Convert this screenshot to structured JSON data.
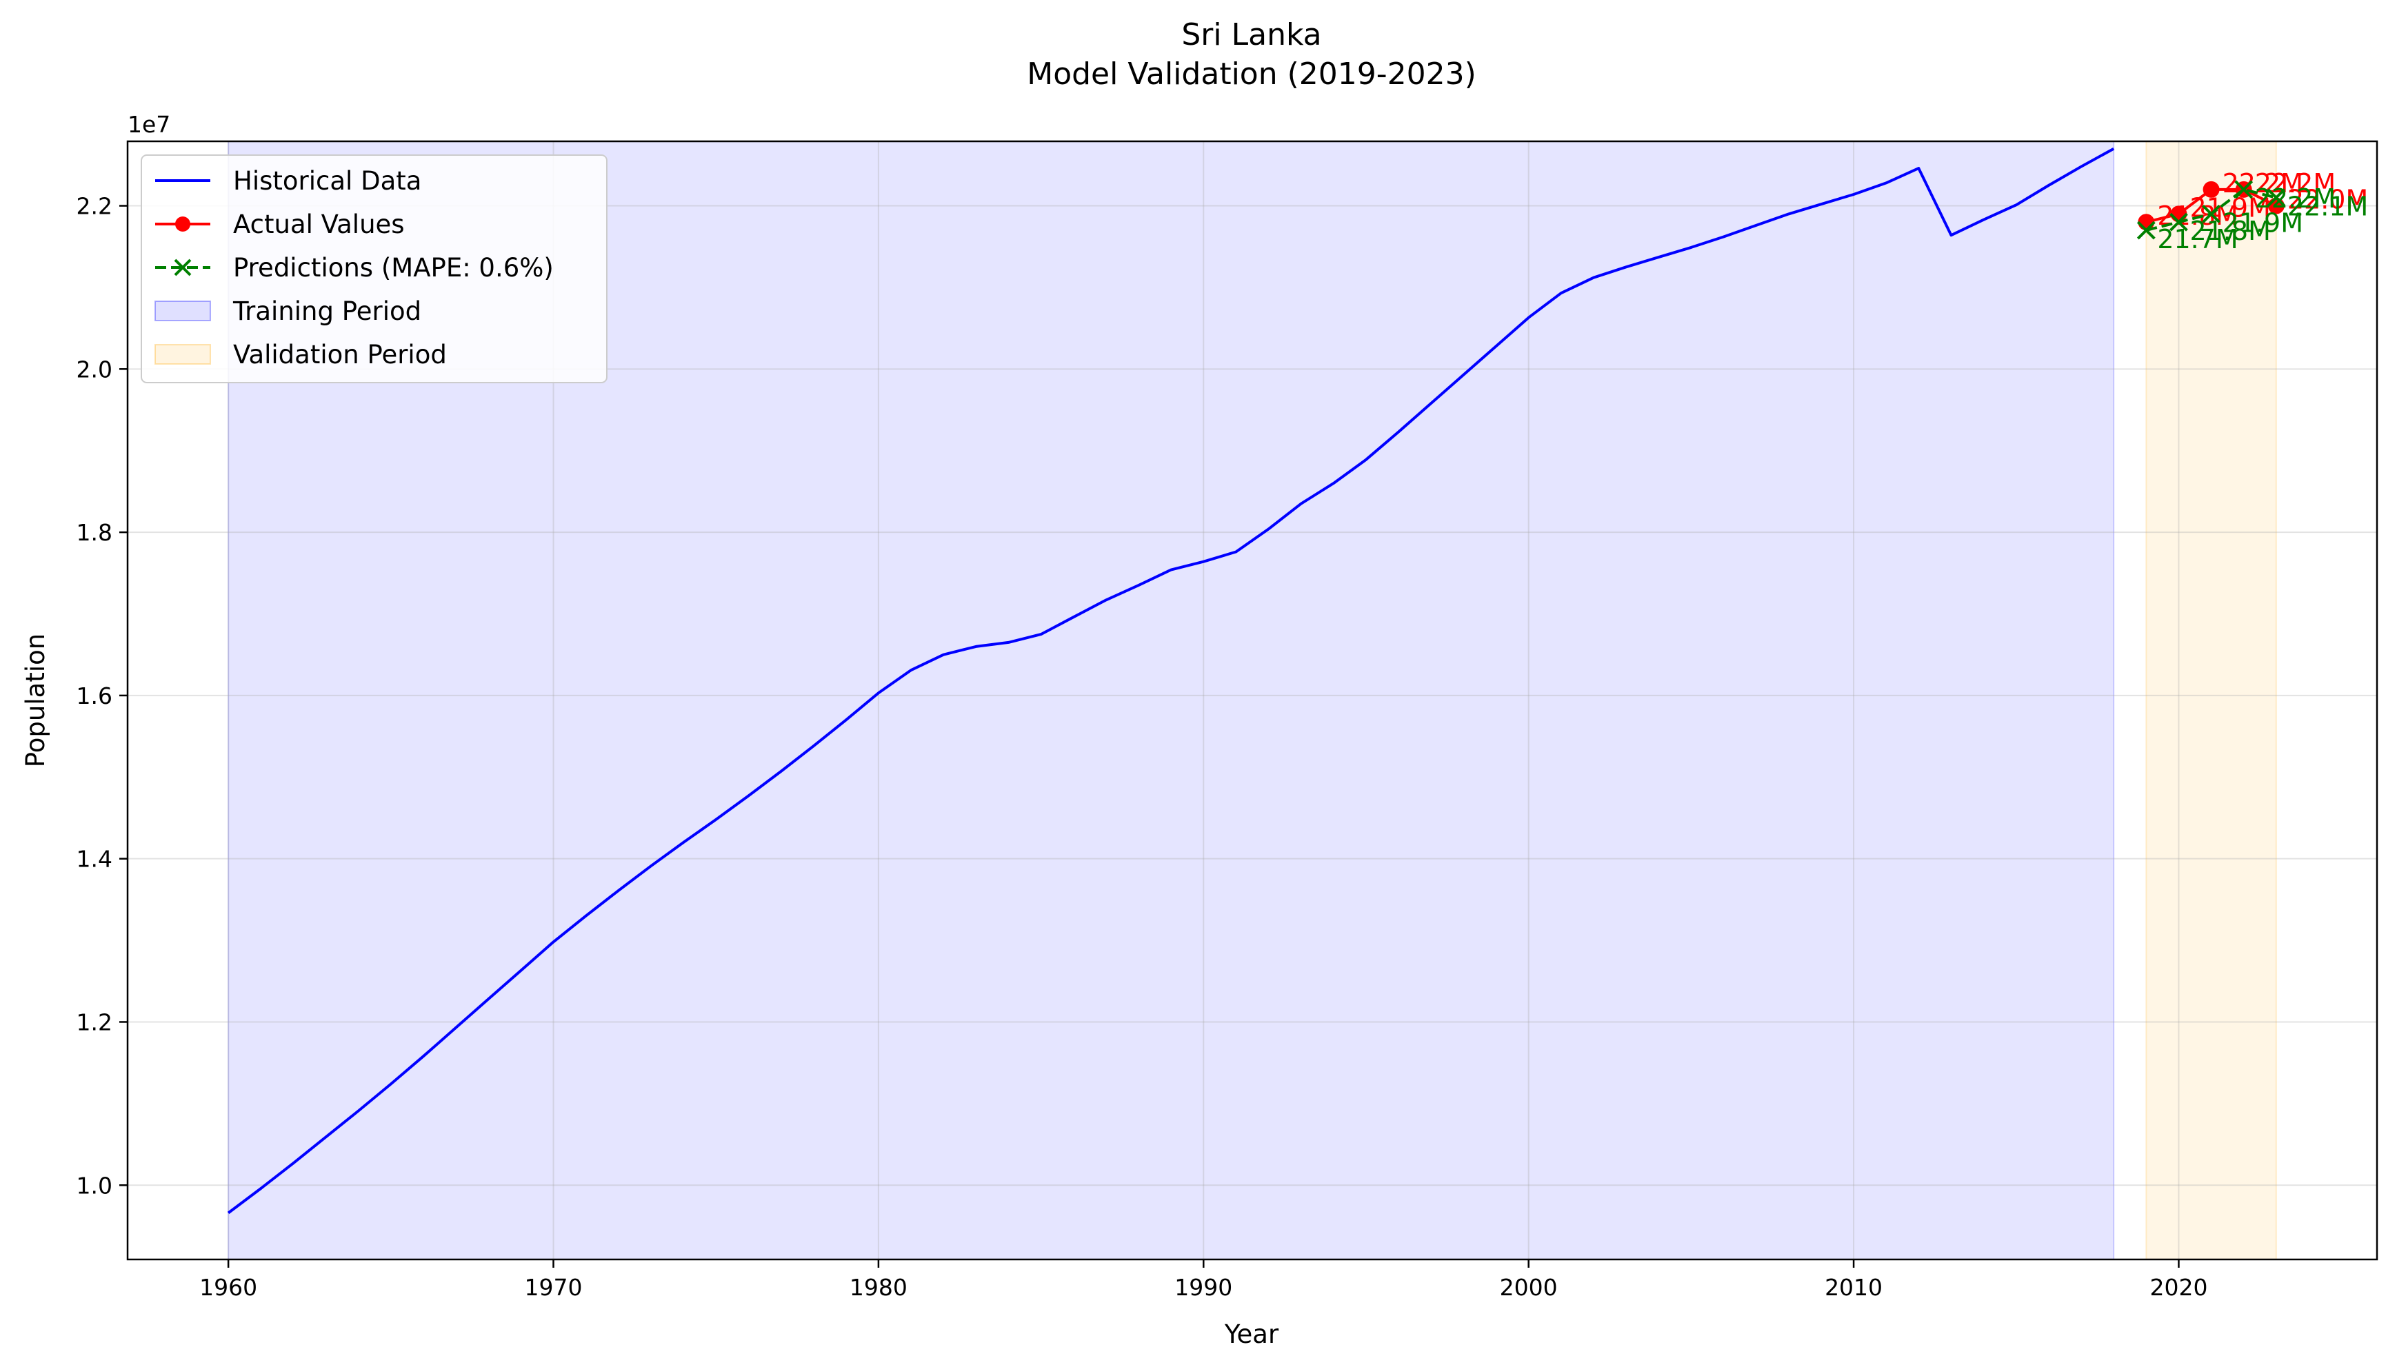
{
  "chart_data": {
    "type": "line",
    "title": "Sri Lanka",
    "subtitle": "Model Validation (2019-2023)",
    "xlabel": "Year",
    "ylabel": "Population",
    "y_offset_label": "1e7",
    "xlim": [
      1956.9,
      2026.1
    ],
    "ylim": [
      9090000,
      22790000
    ],
    "x_ticks": [
      1960,
      1970,
      1980,
      1990,
      2000,
      2010,
      2020
    ],
    "y_ticks": [
      10000000,
      12000000,
      14000000,
      16000000,
      18000000,
      20000000,
      22000000
    ],
    "y_tick_labels": [
      "1.0",
      "1.2",
      "1.4",
      "1.6",
      "1.8",
      "2.0",
      "2.2"
    ],
    "grid": true,
    "legend_position": "upper-left",
    "shaded_regions": [
      {
        "name": "Training Period",
        "x_start": 1960,
        "x_end": 2018,
        "color": "#0000ff",
        "opacity": 0.1
      },
      {
        "name": "Validation Period",
        "x_start": 2019,
        "x_end": 2023,
        "color": "#ffa500",
        "opacity": 0.1
      }
    ],
    "series": [
      {
        "name": "Historical Data",
        "style": "solid",
        "color": "#0000ff",
        "marker": "none",
        "x": [
          1960,
          1961,
          1962,
          1963,
          1964,
          1965,
          1966,
          1967,
          1968,
          1969,
          1970,
          1971,
          1972,
          1973,
          1974,
          1975,
          1976,
          1977,
          1978,
          1979,
          1980,
          1981,
          1982,
          1983,
          1984,
          1985,
          1986,
          1987,
          1988,
          1989,
          1990,
          1991,
          1992,
          1993,
          1994,
          1995,
          1996,
          1997,
          1998,
          1999,
          2000,
          2001,
          2002,
          2003,
          2004,
          2005,
          2006,
          2007,
          2008,
          2009,
          2010,
          2011,
          2012,
          2013,
          2014,
          2015,
          2016,
          2017,
          2018
        ],
        "values": [
          9660000,
          9960000,
          10270000,
          10590000,
          10910000,
          11240000,
          11580000,
          11930000,
          12280000,
          12630000,
          12980000,
          13300000,
          13610000,
          13910000,
          14200000,
          14480000,
          14770000,
          15070000,
          15380000,
          15700000,
          16030000,
          16310000,
          16500000,
          16600000,
          16650000,
          16750000,
          16960000,
          17170000,
          17350000,
          17540000,
          17640000,
          17760000,
          18040000,
          18350000,
          18600000,
          18890000,
          19230000,
          19580000,
          19930000,
          20280000,
          20630000,
          20930000,
          21120000,
          21250000,
          21370000,
          21490000,
          21620000,
          21760000,
          21900000,
          22020000,
          22140000,
          22280000,
          22460000,
          21640000,
          21830000,
          22010000,
          22250000,
          22480000,
          22700000
        ]
      },
      {
        "name": "Actual Values",
        "style": "solid",
        "color": "#ff0000",
        "marker": "circle",
        "x": [
          2019,
          2020,
          2021,
          2022,
          2023
        ],
        "values": [
          21800000,
          21900000,
          22200000,
          22200000,
          22000000
        ],
        "labels": [
          "21.8M",
          "21.9M",
          "22.2M",
          "22.2M",
          "22.0M"
        ]
      },
      {
        "name": "Predictions (MAPE: 0.6%)",
        "style": "dashed",
        "color": "#008000",
        "marker": "x",
        "x": [
          2019,
          2020,
          2021,
          2022,
          2023
        ],
        "values": [
          21700000,
          21800000,
          21900000,
          22200000,
          22100000
        ],
        "labels": [
          "21.7M",
          "21.8M",
          "21.9M",
          "22.2M",
          "22.1M"
        ]
      }
    ]
  }
}
